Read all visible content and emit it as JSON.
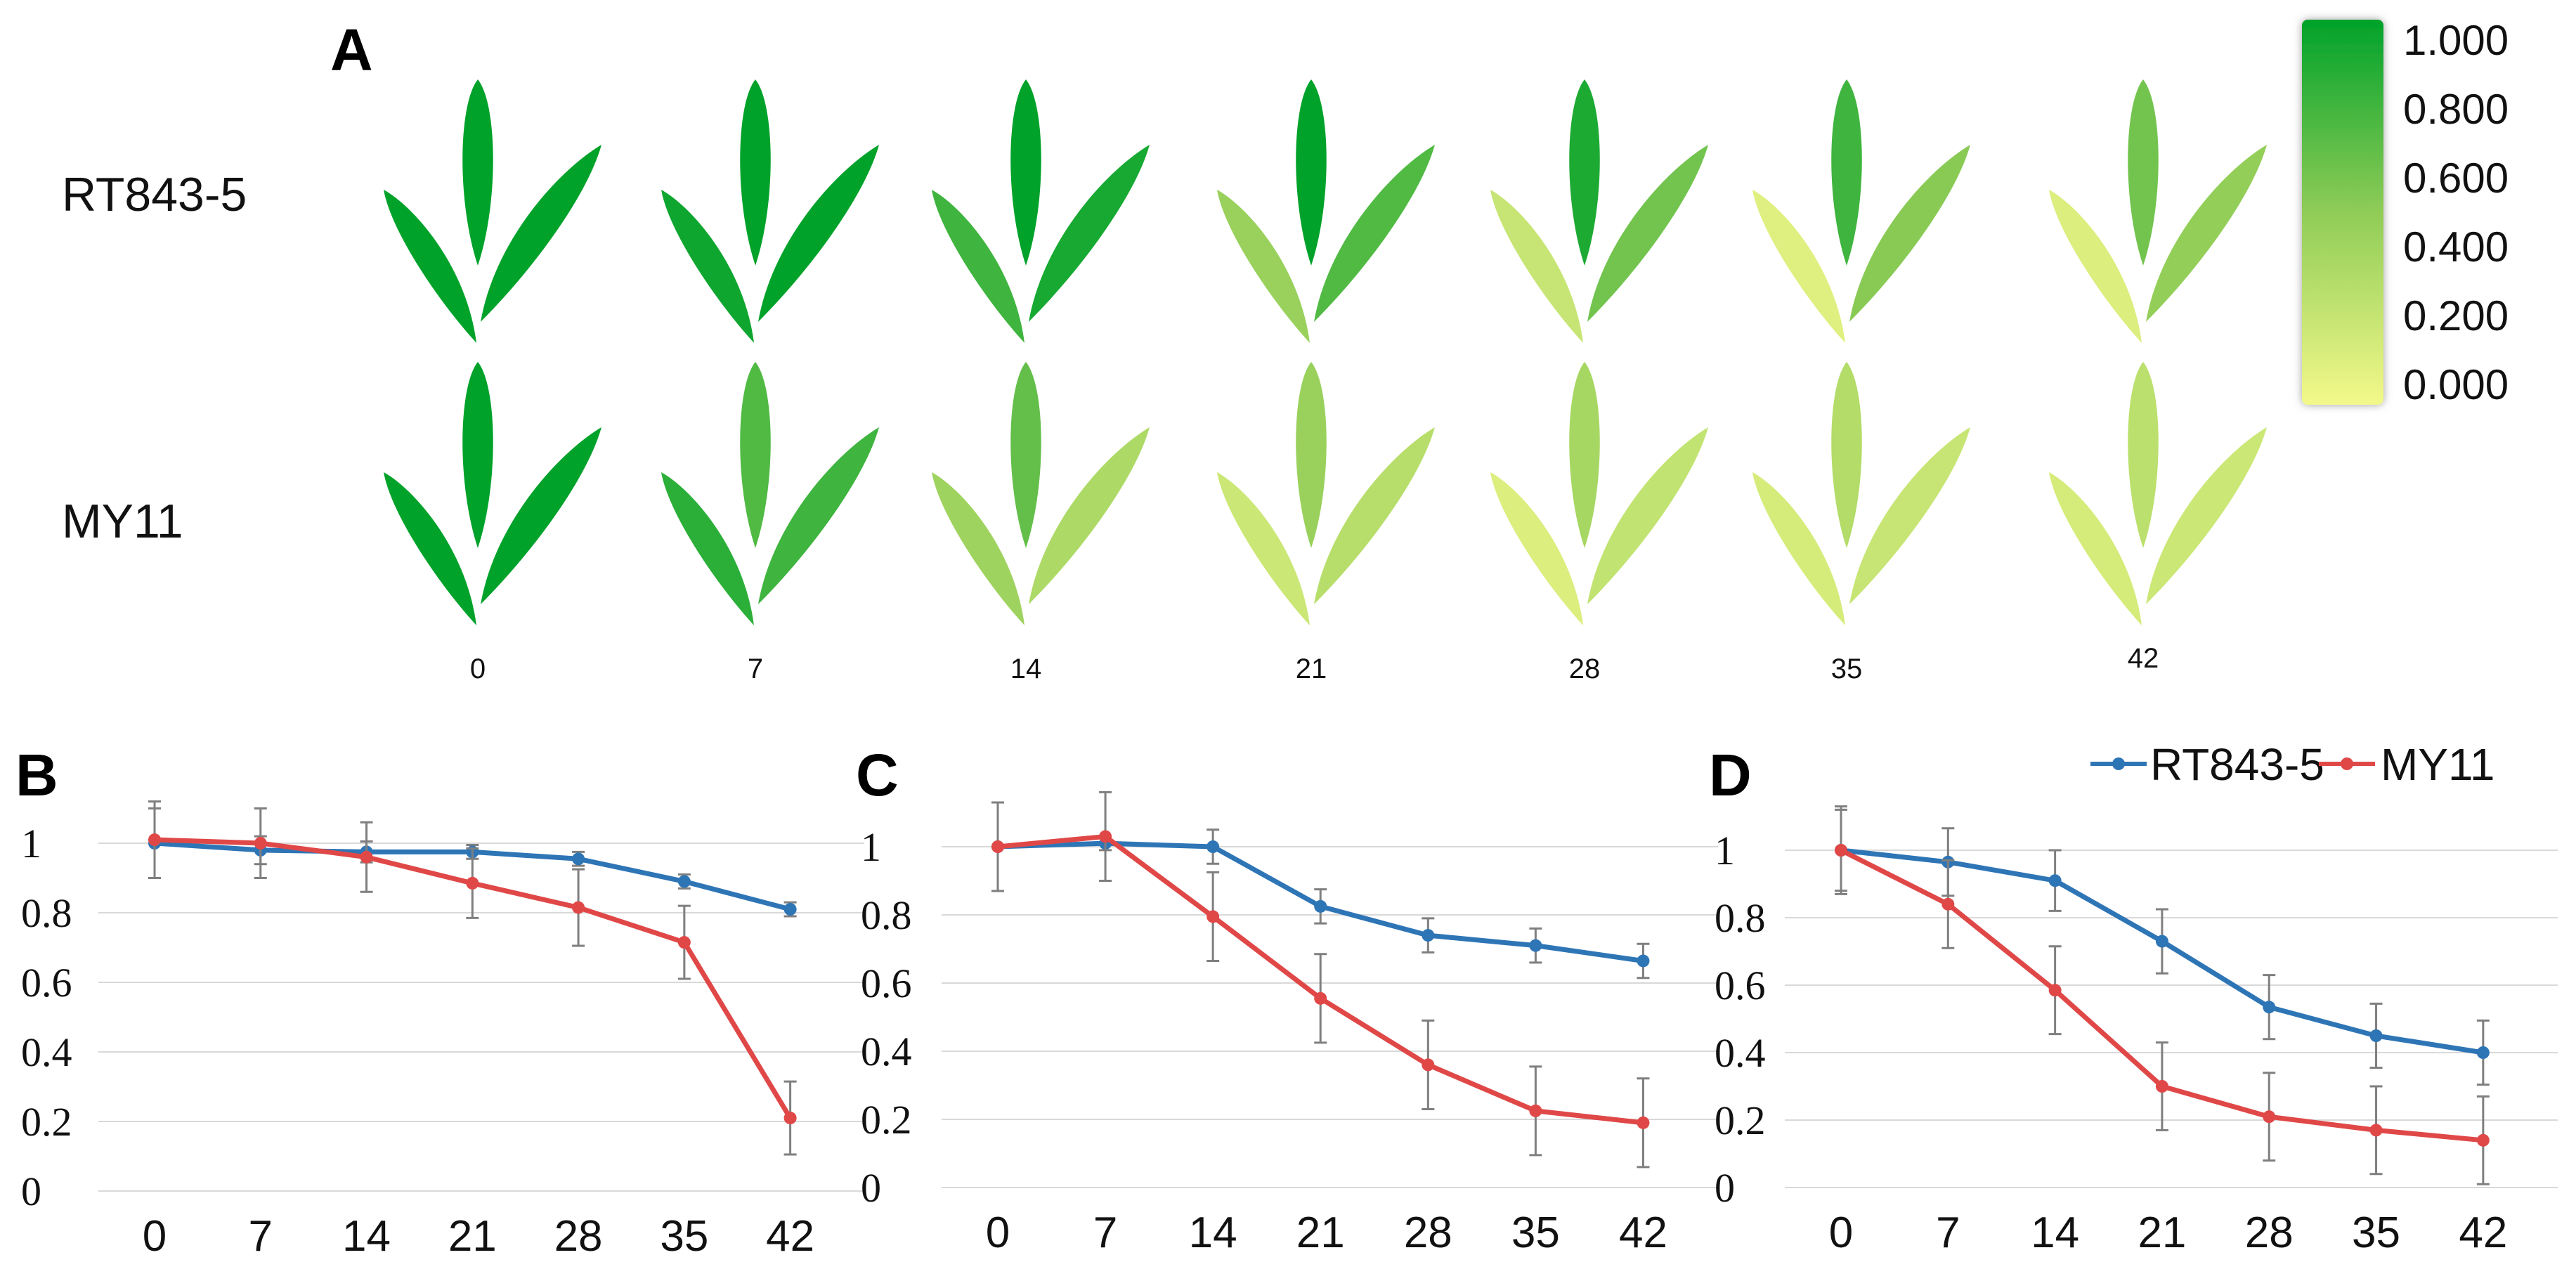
{
  "panel_a": {
    "letter": "A",
    "rows": [
      "RT843-5",
      "MY11"
    ],
    "days": [
      "0",
      "7",
      "14",
      "21",
      "28",
      "35",
      "42"
    ],
    "colorscale": {
      "min_color": "#f3f98a",
      "mid_color": "#8fcc57",
      "max_color": "#00a22a",
      "labels": [
        "1.000",
        "0.800",
        "0.600",
        "0.400",
        "0.200",
        "0.000"
      ]
    },
    "leaf_values": {
      "RT843-5": [
        {
          "left": 1.0,
          "center": 1.0,
          "right": 1.0
        },
        {
          "left": 0.95,
          "center": 1.0,
          "right": 1.0
        },
        {
          "left": 0.78,
          "center": 1.0,
          "right": 0.92
        },
        {
          "left": 0.45,
          "center": 1.0,
          "right": 0.72
        },
        {
          "left": 0.22,
          "center": 0.9,
          "right": 0.6
        },
        {
          "left": 0.1,
          "center": 0.78,
          "right": 0.52
        },
        {
          "left": 0.12,
          "center": 0.6,
          "right": 0.48
        }
      ],
      "MY11": [
        {
          "left": 1.0,
          "center": 1.0,
          "right": 1.0
        },
        {
          "left": 0.85,
          "center": 0.72,
          "right": 0.78
        },
        {
          "left": 0.42,
          "center": 0.65,
          "right": 0.35
        },
        {
          "left": 0.2,
          "center": 0.45,
          "right": 0.3
        },
        {
          "left": 0.12,
          "center": 0.38,
          "right": 0.25
        },
        {
          "left": 0.15,
          "center": 0.32,
          "right": 0.22
        },
        {
          "left": 0.15,
          "center": 0.28,
          "right": 0.2
        }
      ]
    }
  },
  "legend": {
    "items": [
      {
        "name": "RT843-5",
        "color": "#2e75b6"
      },
      {
        "name": "MY11",
        "color": "#e04848"
      }
    ]
  },
  "chart_data": [
    {
      "type": "line",
      "panel": "B",
      "categories": [
        "0",
        "7",
        "14",
        "21",
        "28",
        "35",
        "42"
      ],
      "ylim": [
        0,
        1
      ],
      "yticks": [
        "1",
        "0.8",
        "0.6",
        "0.4",
        "0.2",
        "0"
      ],
      "grid": true,
      "series": [
        {
          "name": "RT843-5",
          "color": "#2e75b6",
          "values": [
            1.0,
            0.98,
            0.975,
            0.975,
            0.955,
            0.89,
            0.81
          ],
          "errors": [
            0.1,
            0.04,
            0.03,
            0.02,
            0.02,
            0.02,
            0.02
          ]
        },
        {
          "name": "MY11",
          "color": "#e04848",
          "values": [
            1.01,
            1.0,
            0.96,
            0.885,
            0.815,
            0.715,
            0.21
          ],
          "errors": [
            0.11,
            0.1,
            0.1,
            0.1,
            0.11,
            0.105,
            0.105
          ]
        }
      ]
    },
    {
      "type": "line",
      "panel": "C",
      "categories": [
        "0",
        "7",
        "14",
        "21",
        "28",
        "35",
        "42"
      ],
      "ylim": [
        0,
        1
      ],
      "yticks": [
        "1",
        "0.8",
        "0.6",
        "0.4",
        "0.2",
        "0"
      ],
      "grid": true,
      "series": [
        {
          "name": "RT843-5",
          "color": "#2e75b6",
          "values": [
            1.0,
            1.01,
            1.0,
            0.825,
            0.74,
            0.71,
            0.665
          ],
          "errors": [
            0.13,
            0.02,
            0.05,
            0.05,
            0.05,
            0.05,
            0.05
          ]
        },
        {
          "name": "MY11",
          "color": "#e04848",
          "values": [
            1.0,
            1.03,
            0.795,
            0.555,
            0.36,
            0.225,
            0.19
          ],
          "errors": [
            0.13,
            0.13,
            0.13,
            0.13,
            0.13,
            0.13,
            0.13
          ]
        }
      ]
    },
    {
      "type": "line",
      "panel": "D",
      "categories": [
        "0",
        "7",
        "14",
        "21",
        "28",
        "35",
        "42"
      ],
      "ylim": [
        0,
        1
      ],
      "yticks": [
        "1",
        "0.8",
        "0.6",
        "0.4",
        "0.2",
        "0"
      ],
      "grid": true,
      "series": [
        {
          "name": "RT843-5",
          "color": "#2e75b6",
          "values": [
            1.0,
            0.965,
            0.91,
            0.73,
            0.535,
            0.45,
            0.4
          ],
          "errors": [
            0.12,
            0.1,
            0.09,
            0.095,
            0.095,
            0.095,
            0.095
          ]
        },
        {
          "name": "MY11",
          "color": "#e04848",
          "values": [
            1.0,
            0.84,
            0.585,
            0.3,
            0.21,
            0.17,
            0.14
          ],
          "errors": [
            0.13,
            0.13,
            0.13,
            0.13,
            0.13,
            0.13,
            0.13
          ]
        }
      ]
    }
  ]
}
